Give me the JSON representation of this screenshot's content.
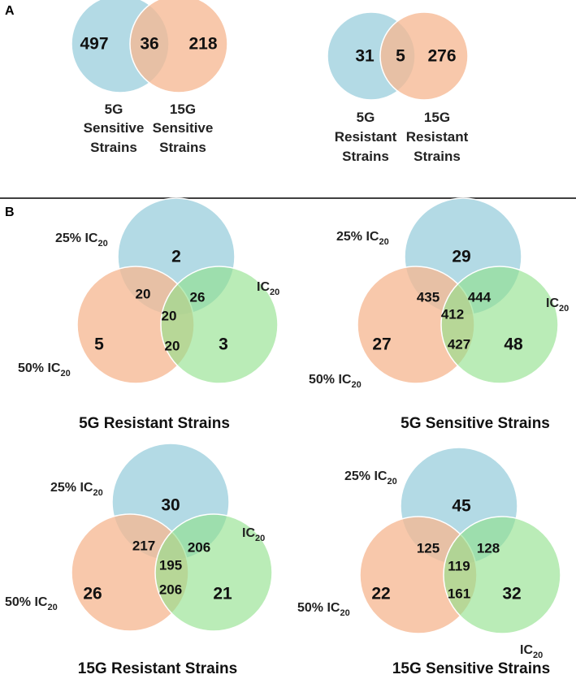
{
  "panel_a": {
    "letter": "A",
    "sensitive": {
      "left_only": "497",
      "overlap": "36",
      "right_only": "218",
      "left_label": [
        "5G",
        "Sensitive",
        "Strains"
      ],
      "right_label": [
        "15G",
        "Sensitive",
        "Strains"
      ]
    },
    "resistant": {
      "left_only": "31",
      "overlap": "5",
      "right_only": "276",
      "left_label": [
        "5G",
        "Resistant",
        "Strains"
      ],
      "right_label": [
        "15G",
        "Resistant",
        "Strains"
      ]
    }
  },
  "panel_b": {
    "letter": "B",
    "set_labels": {
      "pct25": "25% IC",
      "pct50": "50% IC",
      "full": "IC",
      "subscript": "20"
    },
    "venns": [
      {
        "title": "5G Resistant Strains",
        "top_only": "2",
        "left_only": "5",
        "right_only": "3",
        "top_left": "20",
        "top_right": "26",
        "left_right": "20",
        "center": "20"
      },
      {
        "title": "5G Sensitive Strains",
        "top_only": "29",
        "left_only": "27",
        "right_only": "48",
        "top_left": "435",
        "top_right": "444",
        "left_right": "427",
        "center": "412"
      },
      {
        "title": "15G Resistant Strains",
        "top_only": "30",
        "left_only": "26",
        "right_only": "21",
        "top_left": "217",
        "top_right": "206",
        "left_right": "206",
        "center": "195"
      },
      {
        "title": "15G Sensitive Strains",
        "top_only": "45",
        "left_only": "22",
        "right_only": "32",
        "top_left": "125",
        "top_right": "128",
        "left_right": "161",
        "center": "119"
      }
    ]
  }
}
